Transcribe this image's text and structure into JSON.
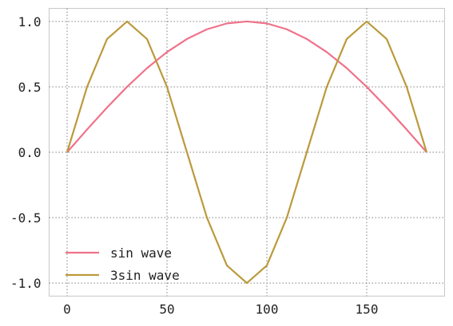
{
  "chart_data": {
    "type": "line",
    "title": "",
    "xlabel": "",
    "ylabel": "",
    "xlim": [
      -9,
      189
    ],
    "ylim": [
      -1.1,
      1.1
    ],
    "x_ticks": [
      0,
      50,
      100,
      150
    ],
    "x_tick_labels": [
      "0",
      "50",
      "100",
      "150"
    ],
    "y_ticks": [
      -1.0,
      -0.5,
      0.0,
      0.5,
      1.0
    ],
    "y_tick_labels": [
      "-1.0",
      "-0.5",
      "0.0",
      "0.5",
      "1.0"
    ],
    "grid": true,
    "legend_position": "lower-left",
    "x": [
      0,
      10,
      20,
      30,
      40,
      50,
      60,
      70,
      80,
      90,
      100,
      110,
      120,
      130,
      140,
      150,
      160,
      170,
      180
    ],
    "series": [
      {
        "name": "sin wave",
        "color": "#f07189",
        "values": [
          0,
          0.174,
          0.342,
          0.5,
          0.643,
          0.766,
          0.866,
          0.94,
          0.985,
          1.0,
          0.985,
          0.94,
          0.866,
          0.766,
          0.643,
          0.5,
          0.342,
          0.174,
          0
        ]
      },
      {
        "name": "3sin wave",
        "color": "#bb9a3c",
        "values": [
          0,
          0.5,
          0.866,
          1.0,
          0.866,
          0.5,
          0,
          -0.5,
          -0.866,
          -1.0,
          -0.866,
          -0.5,
          0,
          0.5,
          0.866,
          1.0,
          0.866,
          0.5,
          0
        ]
      }
    ]
  }
}
